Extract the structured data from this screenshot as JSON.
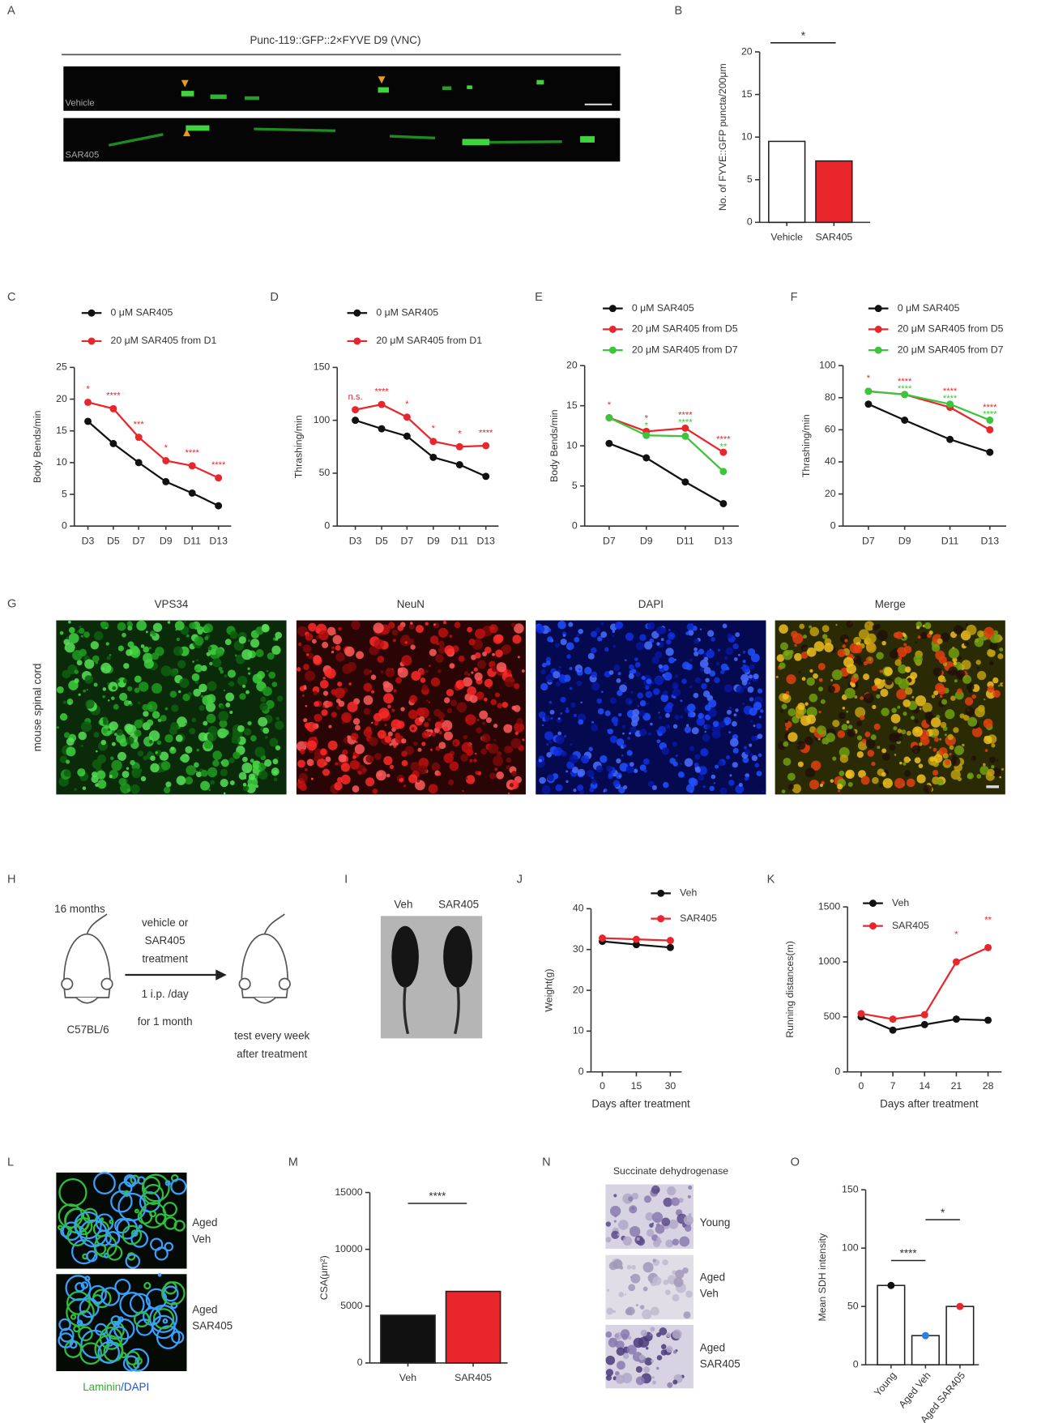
{
  "panels": {
    "A": {
      "label": "A",
      "title": "Punc-119::GFP::2×FYVE D9 (VNC)",
      "rows": [
        "Vehicle",
        "SAR405"
      ]
    },
    "G": {
      "label": "G",
      "columns": [
        "VPS34",
        "NeuN",
        "DAPI",
        "Merge"
      ],
      "row_label": "mouse spinal cord"
    },
    "H": {
      "label": "H",
      "age": "16 months",
      "strain": "C57BL/6",
      "treatment": [
        "vehicle or",
        "SAR405",
        "treatment"
      ],
      "dose": [
        "1 i.p. /day",
        "for 1 month"
      ],
      "test": [
        "test every week",
        "after treatment"
      ]
    },
    "I": {
      "label": "I",
      "columns": [
        "Veh",
        "SAR405"
      ]
    },
    "L": {
      "label": "L",
      "rows": [
        [
          "Aged",
          "Veh"
        ],
        [
          "Aged",
          "SAR405"
        ]
      ],
      "stain": [
        "Laminin",
        "/DAPI"
      ]
    },
    "N": {
      "label": "N",
      "title": "Succinate dehydrogenase",
      "rows": [
        [
          "Young"
        ],
        [
          "Aged",
          "Veh"
        ],
        [
          "Aged",
          "SAR405"
        ]
      ]
    }
  },
  "chart_data": [
    {
      "label": "B",
      "type": "bar",
      "ylabel": "No. of FYVE::GFP puncta/200μm",
      "categories": [
        "Vehicle",
        "SAR405"
      ],
      "values": [
        9.5,
        7.2
      ],
      "colors": [
        "#ffffff",
        "#e8262b"
      ],
      "ylim": [
        0,
        20
      ],
      "yticks": [
        0,
        5,
        10,
        15,
        20
      ],
      "annotations": [
        "*"
      ]
    },
    {
      "label": "C",
      "type": "line",
      "ylabel": "Body Bends/min",
      "categories": [
        "D3",
        "D5",
        "D7",
        "D9",
        "D11",
        "D13"
      ],
      "ylim": [
        0,
        25
      ],
      "yticks": [
        0,
        5,
        10,
        15,
        20,
        25
      ],
      "series": [
        {
          "name": "0 μM SAR405",
          "color": "#111111",
          "values": [
            16.5,
            13,
            10,
            7,
            5.2,
            3.2
          ]
        },
        {
          "name": "20 μM SAR405 from D1",
          "color": "#e8262b",
          "values": [
            19.5,
            18.5,
            14,
            10.3,
            9.5,
            7.6
          ],
          "annotations": [
            "*",
            "****",
            "***",
            "*",
            "****",
            "****"
          ]
        }
      ]
    },
    {
      "label": "D",
      "type": "line",
      "ylabel": "Thrashing/min",
      "categories": [
        "D3",
        "D5",
        "D7",
        "D9",
        "D11",
        "D13"
      ],
      "ylim": [
        0,
        150
      ],
      "yticks": [
        0,
        50,
        100,
        150
      ],
      "series": [
        {
          "name": "0 μM SAR405",
          "color": "#111111",
          "values": [
            100,
            92,
            85,
            65,
            58,
            47
          ]
        },
        {
          "name": "20 μM SAR405 from D1",
          "color": "#e8262b",
          "values": [
            110,
            115,
            103,
            80,
            75,
            76
          ],
          "annotations": [
            "n.s.",
            "****",
            "*",
            "*",
            "*",
            "****"
          ]
        }
      ]
    },
    {
      "label": "E",
      "type": "line",
      "ylabel": "Body Bends/min",
      "categories": [
        "D7",
        "D9",
        "D11",
        "D13"
      ],
      "ylim": [
        0,
        20
      ],
      "yticks": [
        0,
        5,
        10,
        15,
        20
      ],
      "series": [
        {
          "name": "0 μM SAR405",
          "color": "#111111",
          "values": [
            10.3,
            8.5,
            5.5,
            2.8
          ]
        },
        {
          "name": "20 μM SAR405 from D5",
          "color": "#e8262b",
          "values": [
            13.5,
            11.8,
            12.2,
            9.2
          ],
          "annotations": [
            "*",
            "*",
            "****",
            "****"
          ]
        },
        {
          "name": "20 μM SAR405 from D7",
          "color": "#3cc43c",
          "values": [
            13.5,
            11.3,
            11.2,
            6.8
          ],
          "annotations": [
            null,
            "*",
            "****",
            "**"
          ]
        }
      ]
    },
    {
      "label": "F",
      "type": "line",
      "ylabel": "Thrashing/min",
      "categories": [
        "D7",
        "D9",
        "D11",
        "D13"
      ],
      "ylim": [
        0,
        100
      ],
      "yticks": [
        0,
        20,
        40,
        60,
        80,
        100
      ],
      "series": [
        {
          "name": "0 μM SAR405",
          "color": "#111111",
          "values": [
            76,
            66,
            54,
            46
          ]
        },
        {
          "name": "20 μM SAR405 from D5",
          "color": "#e8262b",
          "values": [
            84,
            82,
            74,
            60
          ],
          "annotations": [
            "*",
            "****",
            "****",
            "****"
          ]
        },
        {
          "name": "20 μM SAR405 from D7",
          "color": "#3cc43c",
          "values": [
            84,
            82,
            76,
            66
          ],
          "annotations": [
            null,
            "****",
            "****",
            "****"
          ]
        }
      ]
    },
    {
      "label": "J",
      "type": "line",
      "ylabel": "Weight(g)",
      "xlabel": "Days after treatment",
      "x": [
        0,
        15,
        30
      ],
      "xlim": [
        -5,
        35
      ],
      "xticks": [
        0,
        15,
        30
      ],
      "ylim": [
        0,
        40
      ],
      "yticks": [
        0,
        10,
        20,
        30,
        40
      ],
      "series": [
        {
          "name": "Veh",
          "color": "#111111",
          "values": [
            32,
            31.2,
            30.5
          ]
        },
        {
          "name": "SAR405",
          "color": "#e8262b",
          "values": [
            32.8,
            32.5,
            32.2
          ]
        }
      ]
    },
    {
      "label": "K",
      "type": "line",
      "ylabel": "Running distances(m)",
      "xlabel": "Days after treatment",
      "x": [
        0,
        7,
        14,
        21,
        28
      ],
      "xlim": [
        -3,
        31
      ],
      "xticks": [
        0,
        7,
        14,
        21,
        28
      ],
      "ylim": [
        0,
        1500
      ],
      "yticks": [
        0,
        500,
        1000,
        1500
      ],
      "series": [
        {
          "name": "Veh",
          "color": "#111111",
          "values": [
            500,
            380,
            430,
            480,
            470
          ]
        },
        {
          "name": "SAR405",
          "color": "#e8262b",
          "values": [
            530,
            480,
            520,
            1000,
            1130
          ],
          "annotations": [
            null,
            null,
            null,
            "*",
            "**"
          ]
        }
      ]
    },
    {
      "label": "M",
      "type": "bar",
      "ylabel": "CSA(μm²)",
      "categories": [
        "Veh",
        "SAR405"
      ],
      "values": [
        4200,
        6300
      ],
      "colors": [
        "#111111",
        "#e8262b"
      ],
      "ylim": [
        0,
        15000
      ],
      "yticks": [
        0,
        5000,
        10000,
        15000
      ],
      "annotations": [
        "****"
      ]
    },
    {
      "label": "O",
      "type": "bar",
      "ylabel": "Mean SDH intensity",
      "categories": [
        "Young",
        "Aged Veh",
        "Aged SAR405"
      ],
      "values": [
        68,
        25,
        50
      ],
      "colors": [
        "#ffffff",
        "#ffffff",
        "#ffffff"
      ],
      "point_colors": [
        "#111111",
        "#2f7fd8",
        "#e8262b"
      ],
      "ylim": [
        0,
        150
      ],
      "yticks": [
        0,
        50,
        100,
        150
      ],
      "annotations": [
        "****",
        "*"
      ]
    }
  ]
}
